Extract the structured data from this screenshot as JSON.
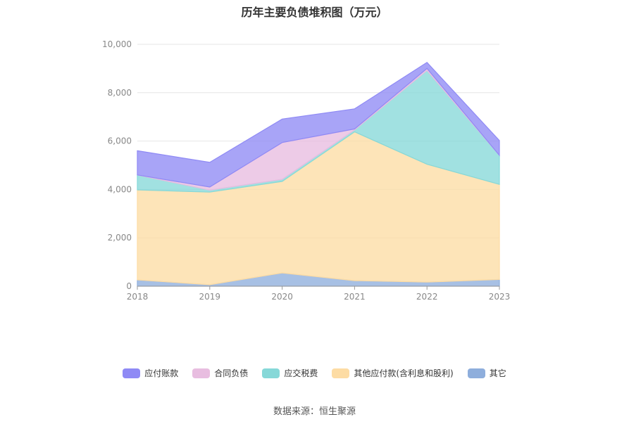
{
  "chart_data": {
    "type": "area",
    "stacked": true,
    "title": "历年主要负债堆积图（万元）",
    "xlabel": "",
    "ylabel": "",
    "x": [
      "2018",
      "2019",
      "2020",
      "2021",
      "2022",
      "2023"
    ],
    "ylim": [
      0,
      10000
    ],
    "yticks": [
      0,
      2000,
      4000,
      6000,
      8000,
      10000
    ],
    "ytick_labels": [
      "0",
      "2,000",
      "4,000",
      "6,000",
      "8,000",
      "10,000"
    ],
    "grid": true,
    "legend_position": "bottom",
    "series": [
      {
        "name": "其它",
        "color": "#8eaedc",
        "values": [
          260,
          60,
          550,
          230,
          170,
          280
        ]
      },
      {
        "name": "其他应付款(含利息和股利)",
        "color": "#fddca4",
        "values": [
          3720,
          3830,
          3780,
          6150,
          4870,
          3930
        ]
      },
      {
        "name": "应交税费",
        "color": "#86d8d8",
        "values": [
          620,
          80,
          90,
          80,
          3880,
          1200
        ]
      },
      {
        "name": "合同负债",
        "color": "#e8bde0",
        "values": [
          0,
          130,
          1520,
          40,
          80,
          0
        ]
      },
      {
        "name": "应付账款",
        "color": "#8f8af5",
        "values": [
          1000,
          1020,
          970,
          830,
          250,
          610
        ]
      }
    ]
  },
  "legend_order": [
    "应付账款",
    "合同负债",
    "应交税费",
    "其他应付款(含利息和股利)",
    "其它"
  ],
  "source_text": "数据来源：恒生聚源"
}
